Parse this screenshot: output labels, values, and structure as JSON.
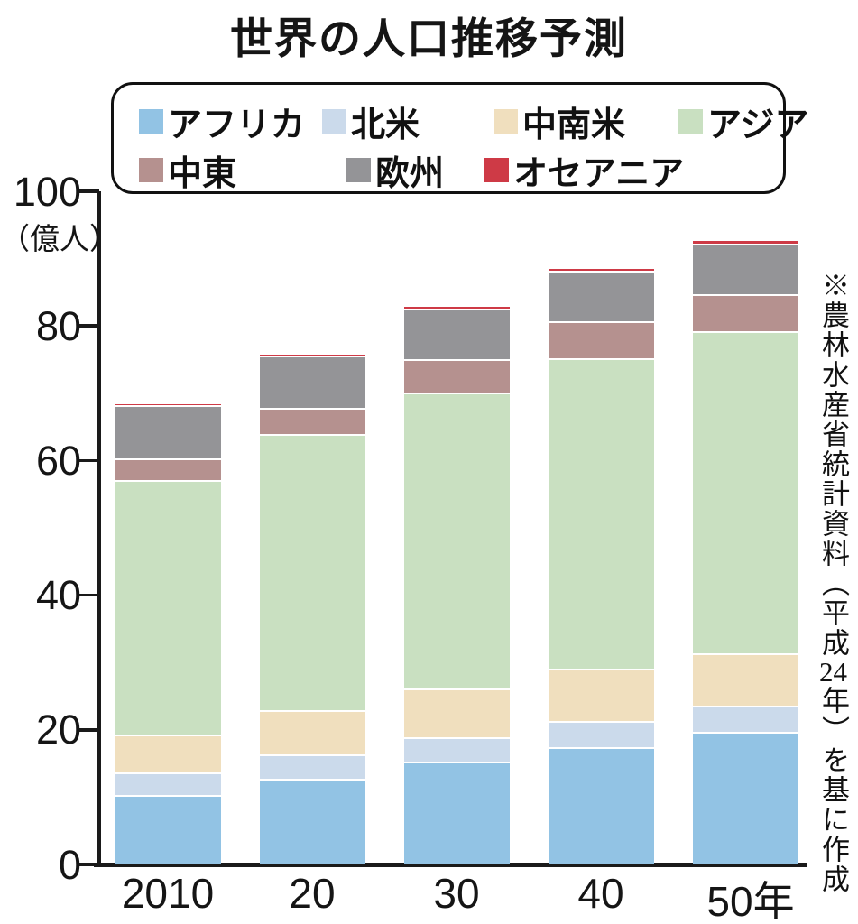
{
  "title": "世界の人口推移予測",
  "y_axis": {
    "unit_label": "（億人）",
    "ticks": [
      0,
      20,
      40,
      60,
      80,
      100
    ],
    "max": 100
  },
  "x_axis": {
    "labels": [
      "2010",
      "20",
      "30",
      "40",
      "50年"
    ]
  },
  "source_note": {
    "prefix": "※農林水産省統計資料（平成",
    "year": "24",
    "suffix": "年）を基に作成"
  },
  "chart_data": {
    "type": "bar",
    "subtype": "stacked-vertical",
    "title": "世界の人口推移予測",
    "ylabel": "（億人）",
    "ylim": [
      0,
      100
    ],
    "grid": false,
    "legend_position": "top-boxed",
    "categories": [
      "2010",
      "20",
      "30",
      "40",
      "50年"
    ],
    "series": [
      {
        "key": "africa",
        "label": "アフリカ",
        "color": "#92C3E4",
        "values": [
          10.0,
          12.5,
          15.0,
          17.2,
          19.5
        ]
      },
      {
        "key": "north-america",
        "label": "北米",
        "color": "#CBDAEB",
        "values": [
          3.4,
          3.6,
          3.7,
          3.8,
          3.8
        ]
      },
      {
        "key": "latin-america",
        "label": "中南米",
        "color": "#F0DFBE",
        "values": [
          5.6,
          6.6,
          7.2,
          7.8,
          7.8
        ]
      },
      {
        "key": "asia",
        "label": "アジア",
        "color": "#C9E0C1",
        "values": [
          37.9,
          41.0,
          44.0,
          46.2,
          47.8
        ]
      },
      {
        "key": "middle-east",
        "label": "中東",
        "color": "#B5918F",
        "values": [
          3.1,
          3.8,
          4.9,
          5.4,
          5.6
        ]
      },
      {
        "key": "europe",
        "label": "欧州",
        "color": "#949497",
        "values": [
          8.0,
          7.8,
          7.5,
          7.5,
          7.5
        ]
      },
      {
        "key": "oceania",
        "label": "オセアニア",
        "color": "#CE3A46",
        "values": [
          0.4,
          0.5,
          0.5,
          0.6,
          0.6
        ]
      }
    ],
    "legend_rows": [
      [
        0,
        1,
        2,
        3
      ],
      [
        4,
        5,
        6
      ]
    ],
    "separator_color": "#FFFFFF",
    "axis_color": "#1A1A1A"
  }
}
